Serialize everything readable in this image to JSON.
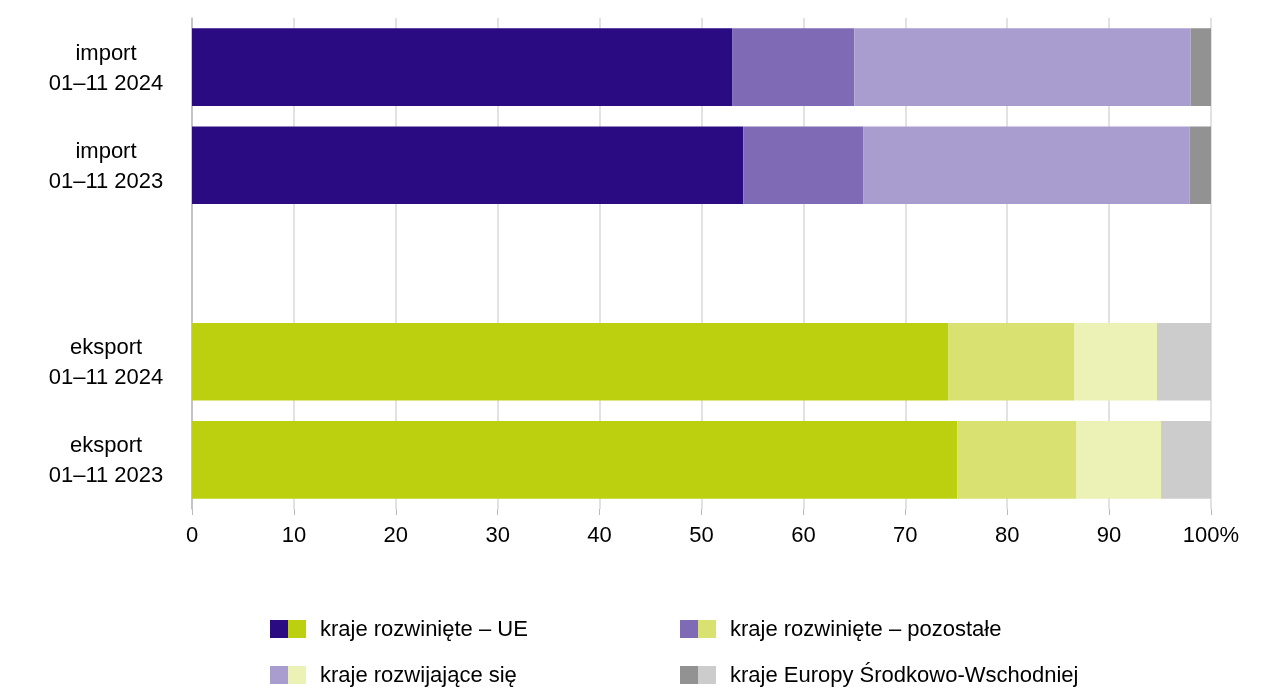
{
  "chart_data": {
    "type": "bar",
    "orientation": "horizontal",
    "stacked": true,
    "categories": [
      "import\n01–11 2024",
      "import\n01–11 2023",
      null,
      "eksport\n01–11 2024",
      "eksport\n01–11 2023"
    ],
    "series": [
      {
        "name": "kraje rozwinięte – UE",
        "colors": [
          "#2a0b82",
          "#2a0b82",
          null,
          "#bdd00f",
          "#bdd00f"
        ],
        "values": [
          53,
          54.1,
          null,
          74.2,
          75.1
        ]
      },
      {
        "name": "kraje rozwinięte – pozostałe",
        "colors": [
          "#7f6bb5",
          "#7f6bb5",
          null,
          "#d9e170",
          "#d9e170"
        ],
        "values": [
          12,
          11.8,
          null,
          12.4,
          11.7
        ]
      },
      {
        "name": "kraje rozwijające się",
        "colors": [
          "#a99ccf",
          "#a99ccf",
          null,
          "#ecf1b6",
          "#ecf1b6"
        ],
        "values": [
          33,
          32,
          null,
          8.1,
          8.3
        ]
      },
      {
        "name": "kraje Europy Środkowo-Wschodniej",
        "colors": [
          "#929292",
          "#929292",
          null,
          "#cccccc",
          "#cccccc"
        ],
        "values": [
          2,
          2.1,
          null,
          5.3,
          4.9
        ]
      }
    ],
    "xlim": [
      0,
      100
    ],
    "xticks": [
      0,
      10,
      20,
      30,
      40,
      50,
      60,
      70,
      80,
      90,
      {
        "value": 100,
        "label": "100%"
      }
    ],
    "grid": "x",
    "legend": "bottom"
  }
}
